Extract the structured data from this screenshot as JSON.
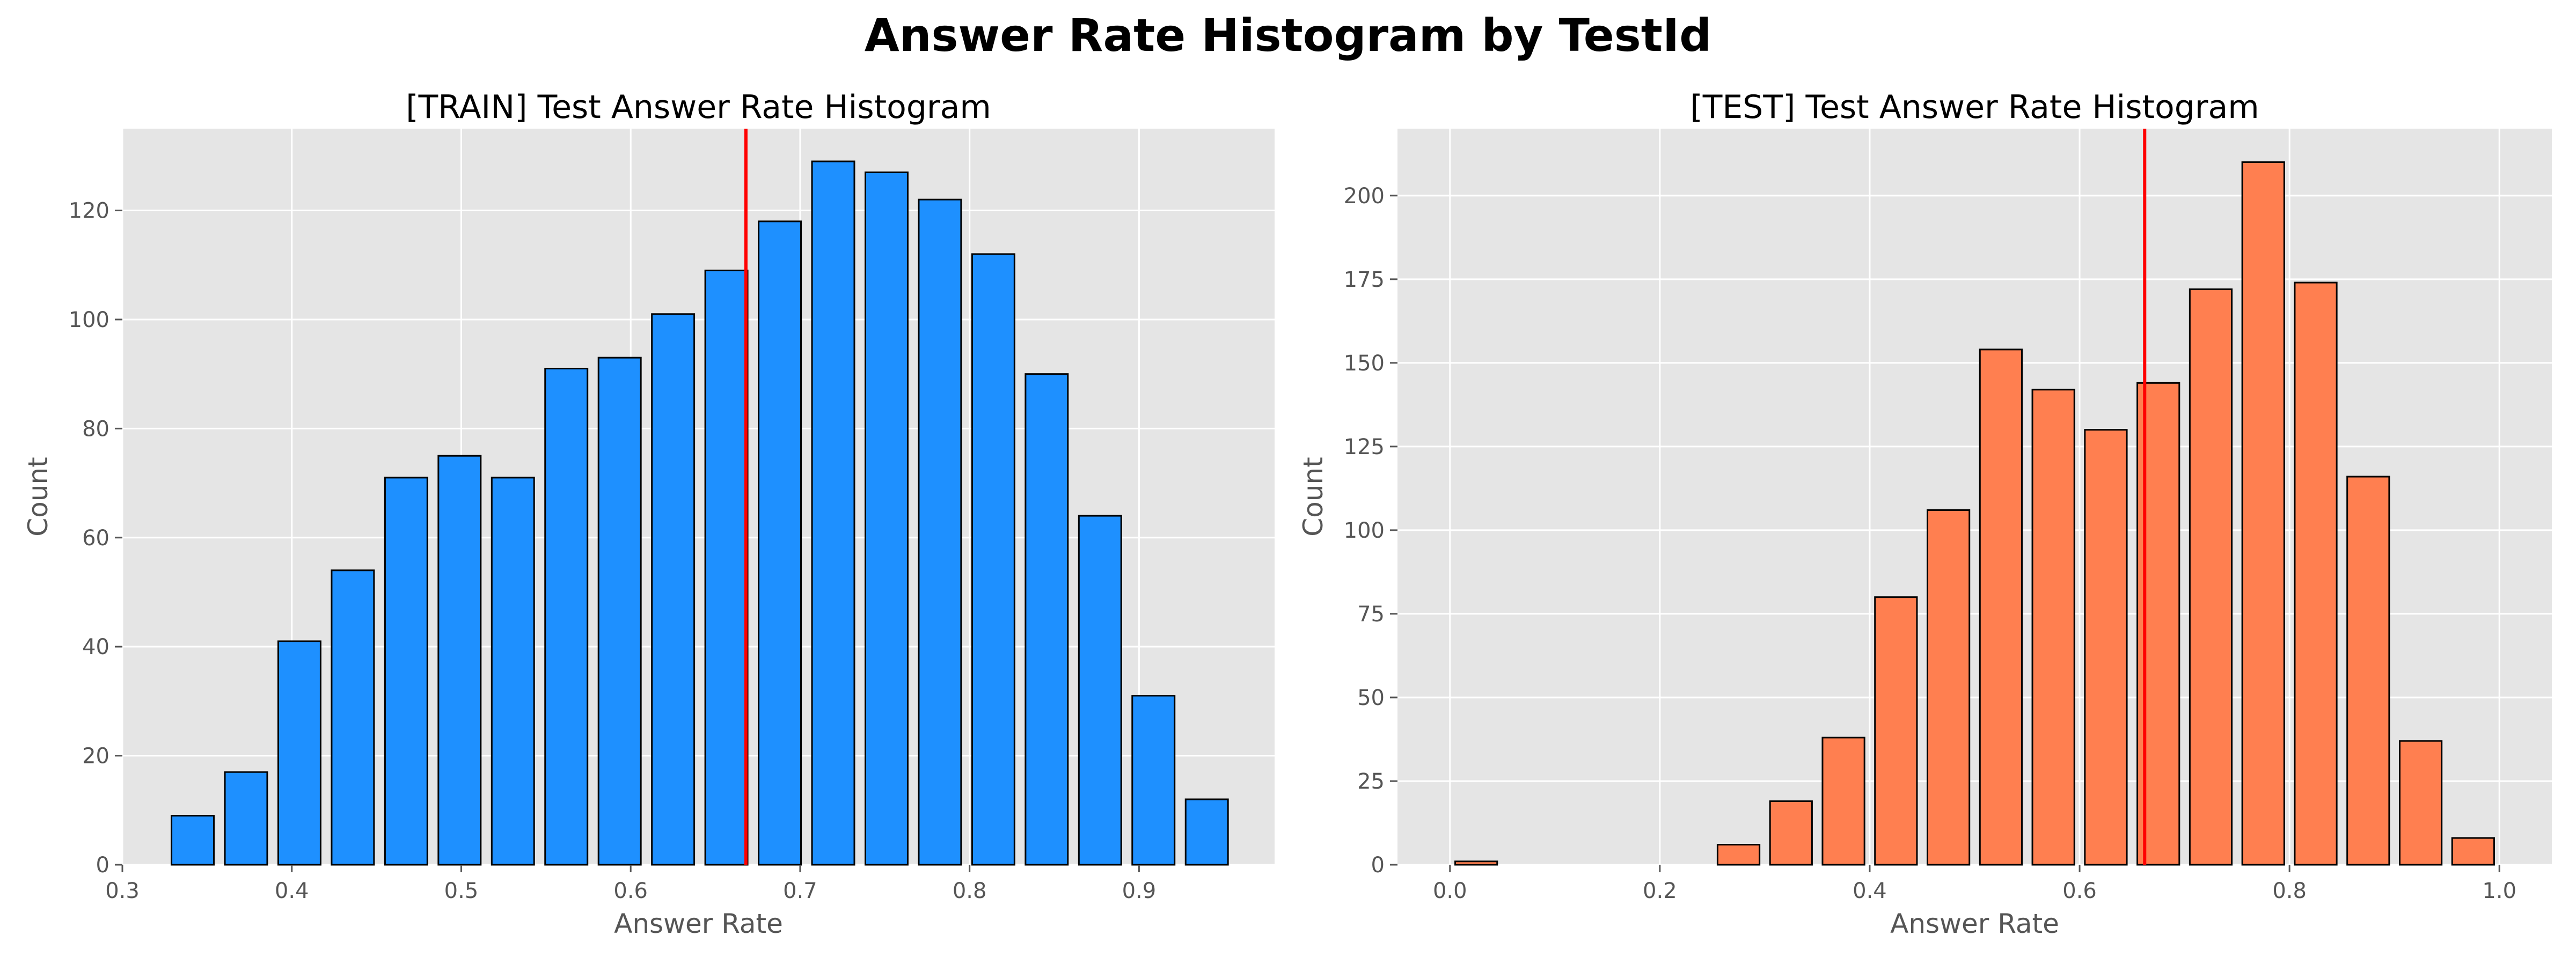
{
  "figure": {
    "title": "Answer Rate Histogram by TestId"
  },
  "chart_data": [
    {
      "type": "bar",
      "title": "[TRAIN] Test Answer Rate Histogram",
      "xlabel": "Answer Rate",
      "ylabel": "Count",
      "bar_color": "#1E90FF",
      "bar_edge_color": "#000000",
      "vline_color": "#FF0000",
      "grid": true,
      "background": "#E5E5E5",
      "xlim": [
        0.3,
        0.98
      ],
      "ylim": [
        0,
        135
      ],
      "xticks": [
        0.3,
        0.4,
        0.5,
        0.6,
        0.7,
        0.8,
        0.9
      ],
      "xtick_labels": [
        "0.3",
        "0.4",
        "0.5",
        "0.6",
        "0.7",
        "0.8",
        "0.9"
      ],
      "yticks": [
        0,
        20,
        40,
        60,
        80,
        100,
        120
      ],
      "ytick_labels": [
        "0",
        "20",
        "40",
        "60",
        "80",
        "100",
        "120"
      ],
      "bar_width": 0.025,
      "x": [
        0.3415,
        0.373,
        0.4045,
        0.436,
        0.4675,
        0.499,
        0.5305,
        0.562,
        0.5935,
        0.625,
        0.6565,
        0.688,
        0.7195,
        0.751,
        0.7825,
        0.814,
        0.8455,
        0.877,
        0.9085,
        0.94
      ],
      "values": [
        9,
        17,
        41,
        54,
        71,
        75,
        71,
        91,
        93,
        101,
        109,
        118,
        129,
        127,
        122,
        112,
        90,
        64,
        31,
        12
      ],
      "vline": 0.668
    },
    {
      "type": "bar",
      "title": "[TEST] Test Answer Rate Histogram",
      "xlabel": "Answer Rate",
      "ylabel": "Count",
      "bar_color": "#FF7F50",
      "bar_edge_color": "#000000",
      "vline_color": "#FF0000",
      "grid": true,
      "background": "#E5E5E5",
      "xlim": [
        -0.05,
        1.05
      ],
      "ylim": [
        0,
        220
      ],
      "xticks": [
        0.0,
        0.2,
        0.4,
        0.6,
        0.8,
        1.0
      ],
      "xtick_labels": [
        "0.0",
        "0.2",
        "0.4",
        "0.6",
        "0.8",
        "1.0"
      ],
      "yticks": [
        0,
        25,
        50,
        75,
        100,
        125,
        150,
        175,
        200
      ],
      "ytick_labels": [
        "0",
        "25",
        "50",
        "75",
        "100",
        "125",
        "150",
        "175",
        "200"
      ],
      "bar_width": 0.04,
      "x": [
        0.025,
        0.075,
        0.125,
        0.175,
        0.225,
        0.275,
        0.325,
        0.375,
        0.425,
        0.475,
        0.525,
        0.575,
        0.625,
        0.675,
        0.725,
        0.775,
        0.825,
        0.875,
        0.925,
        0.975
      ],
      "values": [
        1,
        0,
        0,
        0,
        0,
        6,
        19,
        38,
        80,
        106,
        154,
        142,
        130,
        144,
        172,
        210,
        174,
        116,
        37,
        8
      ],
      "vline": 0.662
    }
  ]
}
